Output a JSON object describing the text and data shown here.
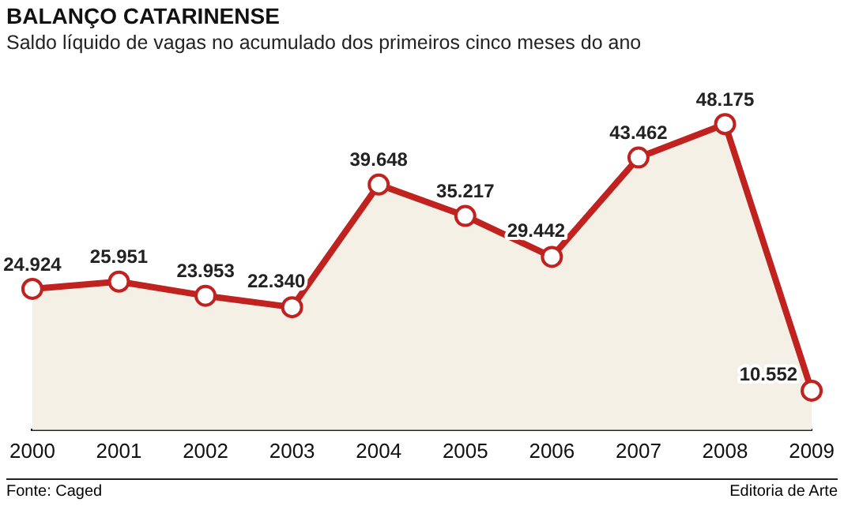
{
  "chart_data": {
    "type": "area",
    "title": "BALANÇO CATARINENSE",
    "subtitle": "Saldo líquido de vagas no acumulado dos primeiros cinco meses do ano",
    "categories": [
      "2000",
      "2001",
      "2002",
      "2003",
      "2004",
      "2005",
      "2006",
      "2007",
      "2008",
      "2009"
    ],
    "values": [
      24924,
      25951,
      23953,
      22340,
      39648,
      35217,
      29442,
      43462,
      48175,
      10552
    ],
    "value_labels": [
      "24.924",
      "25.951",
      "23.953",
      "22.340",
      "39.648",
      "35.217",
      "29.442",
      "43.462",
      "48.175",
      "10.552"
    ],
    "color": "#c0221f",
    "marker": "circle",
    "grid": false,
    "legend": false,
    "annotations": [
      "Fonte: Caged",
      "Editoria de Arte"
    ]
  }
}
